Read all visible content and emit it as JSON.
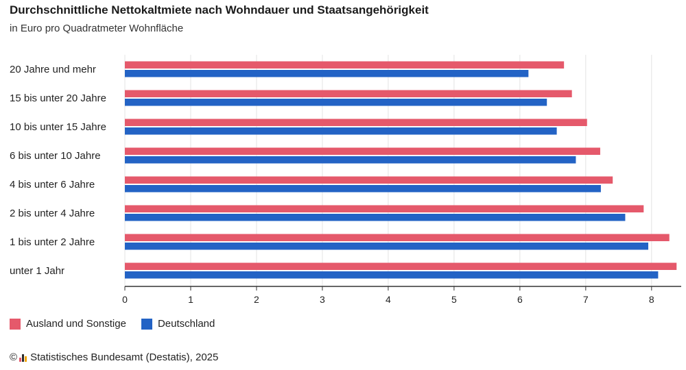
{
  "colors": {
    "foreign": "#e5596b",
    "germany": "#2363c5",
    "grid": "#e3e3e3",
    "axis": "#333333"
  },
  "chart_data": {
    "type": "bar",
    "orientation": "horizontal",
    "title": "Durchschnittliche Nettokaltmiete nach Wohndauer und Staatsangehörigkeit",
    "subtitle": "in Euro pro Quadratmeter Wohnfläche",
    "categories": [
      "20 Jahre und mehr",
      "15 bis unter 20 Jahre",
      "10 bis unter 15 Jahre",
      "6 bis unter 10 Jahre",
      "4 bis unter 6 Jahre",
      "2 bis unter 4 Jahre",
      "1 bis unter 2 Jahre",
      "unter 1 Jahr"
    ],
    "series": [
      {
        "name": "Ausland und Sonstige",
        "values": [
          6.67,
          6.79,
          7.02,
          7.22,
          7.41,
          7.88,
          8.27,
          8.38
        ]
      },
      {
        "name": "Deutschland",
        "values": [
          6.13,
          6.41,
          6.56,
          6.85,
          7.23,
          7.6,
          7.95,
          8.1
        ]
      }
    ],
    "xlim": [
      0,
      8.45
    ],
    "xticks": [
      "0",
      "1",
      "2",
      "3",
      "4",
      "5",
      "6",
      "7",
      "8"
    ],
    "grid": true,
    "legend_position": "bottom-left"
  },
  "footer": {
    "copyright_symbol": "©",
    "source": "Statistisches Bundesamt (Destatis), 2025"
  }
}
